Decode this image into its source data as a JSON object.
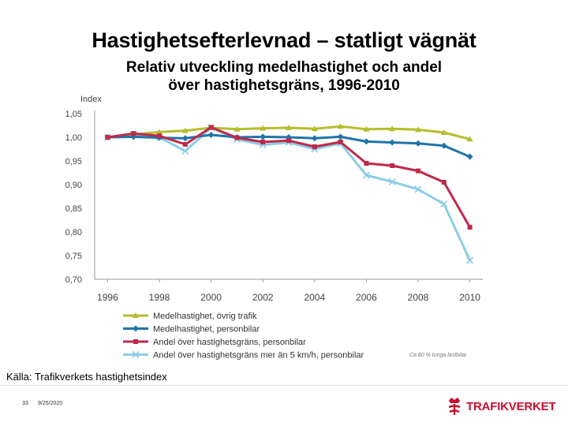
{
  "slide": {
    "title": "Hastighetsefterlevnad – statligt vägnät",
    "subtitle_line1": "Relativ utveckling medelhastighet och andel",
    "subtitle_line2": "över hastighetsgräns, 1996-2010",
    "source": "Källa: Trafikverkets hastighetsindex",
    "page_number": "33",
    "date": "9/25/2020",
    "logo_text": "TRAFIKVERKET"
  },
  "chart_data": {
    "type": "line",
    "ylabel": "Index",
    "ylim": [
      0.7,
      1.05
    ],
    "yticks": [
      "1,05",
      "1,00",
      "0,95",
      "0,90",
      "0,85",
      "0,80",
      "0,75",
      "0,70"
    ],
    "ytick_values": [
      1.05,
      1.0,
      0.95,
      0.9,
      0.85,
      0.8,
      0.75,
      0.7
    ],
    "xlim": [
      1995.5,
      2010.5
    ],
    "xticks": [
      "1996",
      "1998",
      "2000",
      "2002",
      "2004",
      "2006",
      "2008",
      "2010"
    ],
    "xtick_values": [
      1996,
      1998,
      2000,
      2002,
      2004,
      2006,
      2008,
      2010
    ],
    "x": [
      1996,
      1997,
      1998,
      1999,
      2000,
      2001,
      2002,
      2003,
      2004,
      2005,
      2006,
      2007,
      2008,
      2009,
      2010
    ],
    "series": [
      {
        "name": "Medelhastighet, övrig trafik",
        "color": "#b5bd2e",
        "marker": "triangle",
        "values": [
          1.0,
          1.006,
          1.011,
          1.014,
          1.02,
          1.017,
          1.019,
          1.02,
          1.018,
          1.023,
          1.017,
          1.018,
          1.016,
          1.01,
          0.996
        ]
      },
      {
        "name": "Medelhastighet, personbilar",
        "color": "#1f75a8",
        "marker": "diamond",
        "values": [
          1.0,
          1.001,
          0.999,
          0.998,
          1.005,
          1.0,
          1.001,
          1.0,
          0.998,
          1.001,
          0.991,
          0.989,
          0.987,
          0.982,
          0.959
        ]
      },
      {
        "name": "Andel över hastighetsgräns, personbilar",
        "color": "#c0284a",
        "marker": "square",
        "values": [
          1.0,
          1.008,
          1.003,
          0.985,
          1.021,
          0.999,
          0.99,
          0.993,
          0.98,
          0.99,
          0.945,
          0.94,
          0.929,
          0.905,
          0.81
        ]
      },
      {
        "name": "Andel över hastighetsgräns mer än 5 km/h, personbilar",
        "color": "#8ccde6",
        "marker": "x",
        "values": [
          1.0,
          1.006,
          1.0,
          0.971,
          1.02,
          0.996,
          0.984,
          0.989,
          0.975,
          0.987,
          0.92,
          0.906,
          0.89,
          0.859,
          0.74
        ]
      }
    ],
    "legend_position": "bottom-left",
    "footnote": "Ca 80 % tunga lastbilar",
    "grid": false
  }
}
